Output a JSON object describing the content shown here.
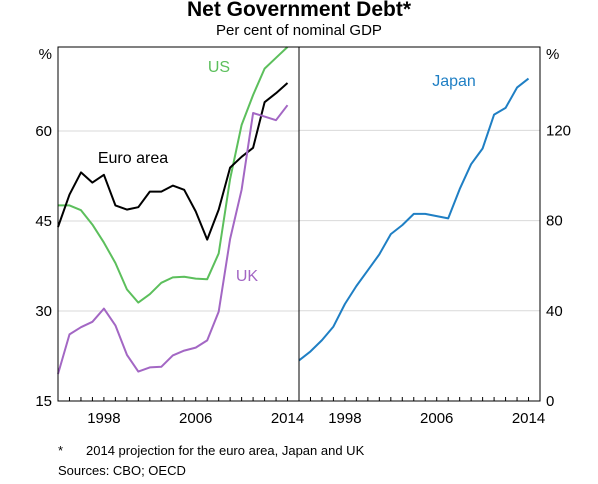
{
  "chart_data": {
    "type": "line",
    "title": "Net Government Debt*",
    "subtitle": "Per cent of nominal GDP",
    "footnote_marker": "*",
    "footnote": "2014 projection for the euro area, Japan and UK",
    "sources": "Sources:   CBO; OECD",
    "x_ticks": [
      "1998",
      "2006",
      "2014"
    ],
    "panels": [
      {
        "name": "left",
        "y_unit": "%",
        "ylim": [
          15,
          74
        ],
        "y_ticks": [
          15,
          30,
          45,
          60
        ],
        "xlim": [
          1994,
          2015
        ],
        "series": [
          {
            "name": "US",
            "color": "#5cbf5c",
            "x": [
              1994,
              1995,
              1996,
              1997,
              1998,
              1999,
              2000,
              2001,
              2002,
              2003,
              2004,
              2005,
              2006,
              2007,
              2008,
              2009,
              2010,
              2011,
              2012,
              2013,
              2014
            ],
            "values": [
              47.6,
              47.6,
              46.8,
              44.4,
              41.4,
              38.0,
              33.6,
              31.4,
              32.8,
              34.7,
              35.6,
              35.7,
              35.4,
              35.3,
              39.6,
              52.0,
              61.0,
              66.0,
              70.4,
              72.2,
              74.0
            ]
          },
          {
            "name": "Euro area",
            "color": "#000000",
            "x": [
              1994,
              1995,
              1996,
              1997,
              1998,
              1999,
              2000,
              2001,
              2002,
              2003,
              2004,
              2005,
              2006,
              2007,
              2008,
              2009,
              2010,
              2011,
              2012,
              2013,
              2014
            ],
            "values": [
              44.0,
              49.4,
              53.1,
              51.4,
              52.7,
              47.6,
              46.9,
              47.3,
              49.9,
              49.9,
              50.9,
              50.2,
              46.6,
              41.9,
              46.9,
              53.9,
              55.7,
              57.2,
              64.8,
              66.3,
              68.0
            ]
          },
          {
            "name": "UK",
            "color": "#a367c4",
            "x": [
              1994,
              1995,
              1996,
              1997,
              1998,
              1999,
              2000,
              2001,
              2002,
              2003,
              2004,
              2005,
              2006,
              2007,
              2008,
              2009,
              2010,
              2011,
              2012,
              2013,
              2014
            ],
            "values": [
              19.5,
              26.1,
              27.3,
              28.2,
              30.4,
              27.6,
              22.7,
              19.9,
              20.6,
              20.7,
              22.6,
              23.4,
              23.9,
              25.1,
              29.9,
              42.0,
              50.2,
              63.0,
              62.4,
              61.8,
              64.3
            ]
          }
        ]
      },
      {
        "name": "right",
        "y_unit": "%",
        "ylim": [
          0,
          157
        ],
        "y_ticks": [
          0,
          40,
          80,
          120
        ],
        "xlim": [
          1994,
          2015
        ],
        "series": [
          {
            "name": "Japan",
            "color": "#1f7fc4",
            "x": [
              1994,
              1995,
              1996,
              1997,
              1998,
              1999,
              2000,
              2001,
              2002,
              2003,
              2004,
              2005,
              2006,
              2007,
              2008,
              2009,
              2010,
              2011,
              2012,
              2013,
              2014
            ],
            "values": [
              18,
              22,
              27,
              33,
              43,
              51,
              58,
              65,
              74,
              78,
              83,
              83,
              82,
              81,
              94,
              105,
              112,
              127,
              130,
              139,
              143
            ]
          }
        ]
      }
    ]
  }
}
